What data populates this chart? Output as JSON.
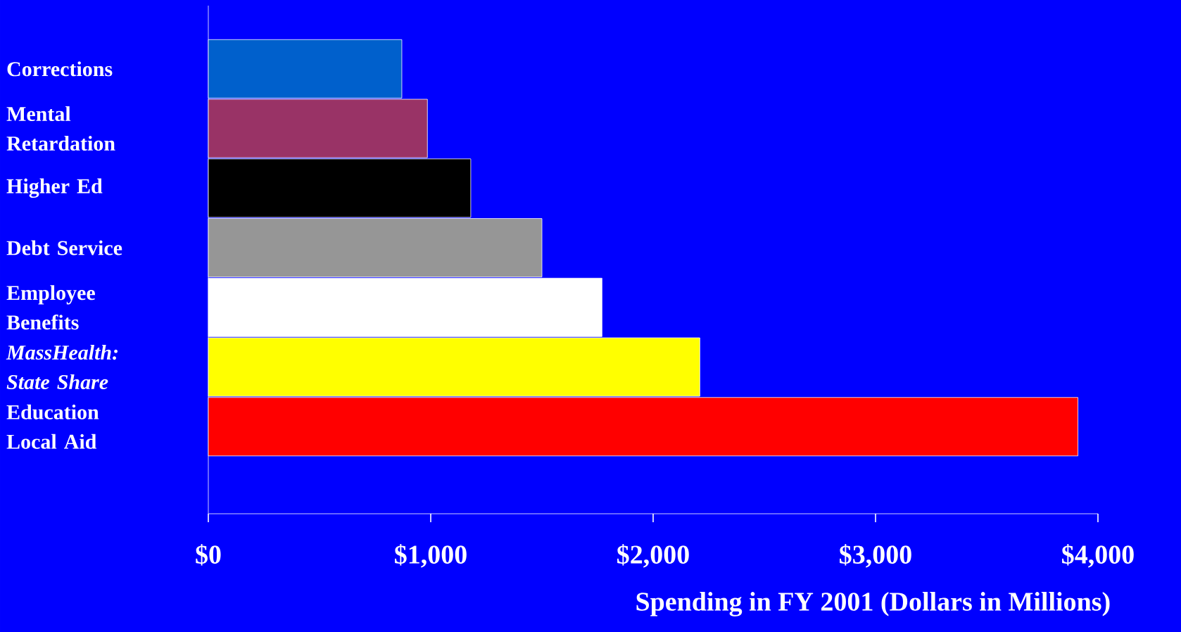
{
  "chart_data": {
    "type": "bar",
    "orientation": "horizontal",
    "categories": [
      "Corrections",
      "Mental Retardation",
      "Higher Ed",
      "Debt Service",
      "Employee Benefits",
      "*MassHealth: State Share*",
      "Education Local Aid"
    ],
    "values": [
      870,
      985,
      1180,
      1500,
      1770,
      2210,
      3910
    ],
    "colors": [
      "#0060cc",
      "#993366",
      "#000000",
      "#969696",
      "#ffffff",
      "#ffff00",
      "#ff0000"
    ],
    "xlim": [
      0,
      4000
    ],
    "xticks": [
      {
        "value": 0,
        "label": "$0"
      },
      {
        "value": 1000,
        "label": "$1,000"
      },
      {
        "value": 2000,
        "label": "$2,000"
      },
      {
        "value": 3000,
        "label": "$3,000"
      },
      {
        "value": 4000,
        "label": "$4,000"
      }
    ],
    "xlabel": "Spending in FY 2001 (Dollars in Millions)",
    "grid": false
  }
}
